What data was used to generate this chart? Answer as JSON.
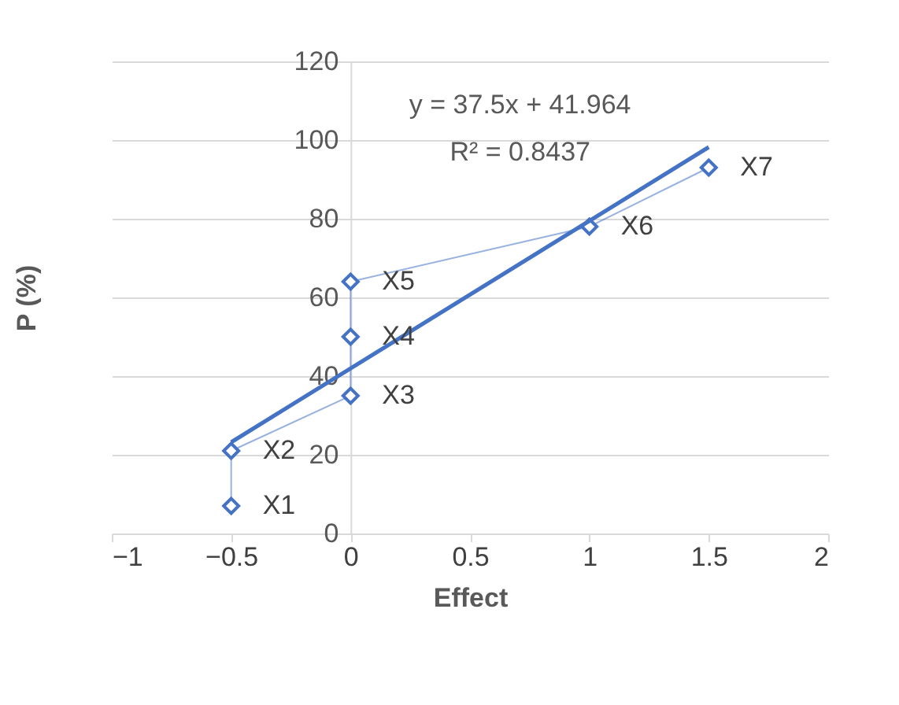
{
  "chart_data": {
    "type": "line",
    "xlabel": "Effect",
    "ylabel": "P (%)",
    "xlim": [
      -1,
      2
    ],
    "xticks": [
      -1,
      -0.5,
      0,
      0.5,
      1,
      1.5,
      2
    ],
    "ylim": [
      0,
      120
    ],
    "yticks": [
      0,
      20,
      40,
      60,
      80,
      100,
      120
    ],
    "grid": "y",
    "series": [
      {
        "marker": "diamond",
        "color": "#4472c4",
        "x": [
          -0.5,
          -0.5,
          0,
          0,
          0,
          1,
          1.5
        ],
        "values": [
          7,
          21,
          35,
          50,
          64,
          78,
          93
        ]
      },
      {
        "marker": "none",
        "color": "#4472c4",
        "x": [
          -0.5,
          1.5
        ],
        "values": [
          23.2,
          98.2
        ]
      }
    ],
    "annotations": [
      "y = 37.5x + 41.964",
      "R² = 0.8437",
      {
        "text": "X1",
        "x": -0.5,
        "y": 7
      },
      {
        "text": "X2",
        "x": -0.5,
        "y": 21
      },
      {
        "text": "X3",
        "x": 0,
        "y": 35
      },
      {
        "text": "X4",
        "x": 0,
        "y": 50
      },
      {
        "text": "X5",
        "x": 0,
        "y": 64
      },
      {
        "text": "X6",
        "x": 1,
        "y": 78
      },
      {
        "text": "X7",
        "x": 1.5,
        "y": 93
      }
    ]
  }
}
